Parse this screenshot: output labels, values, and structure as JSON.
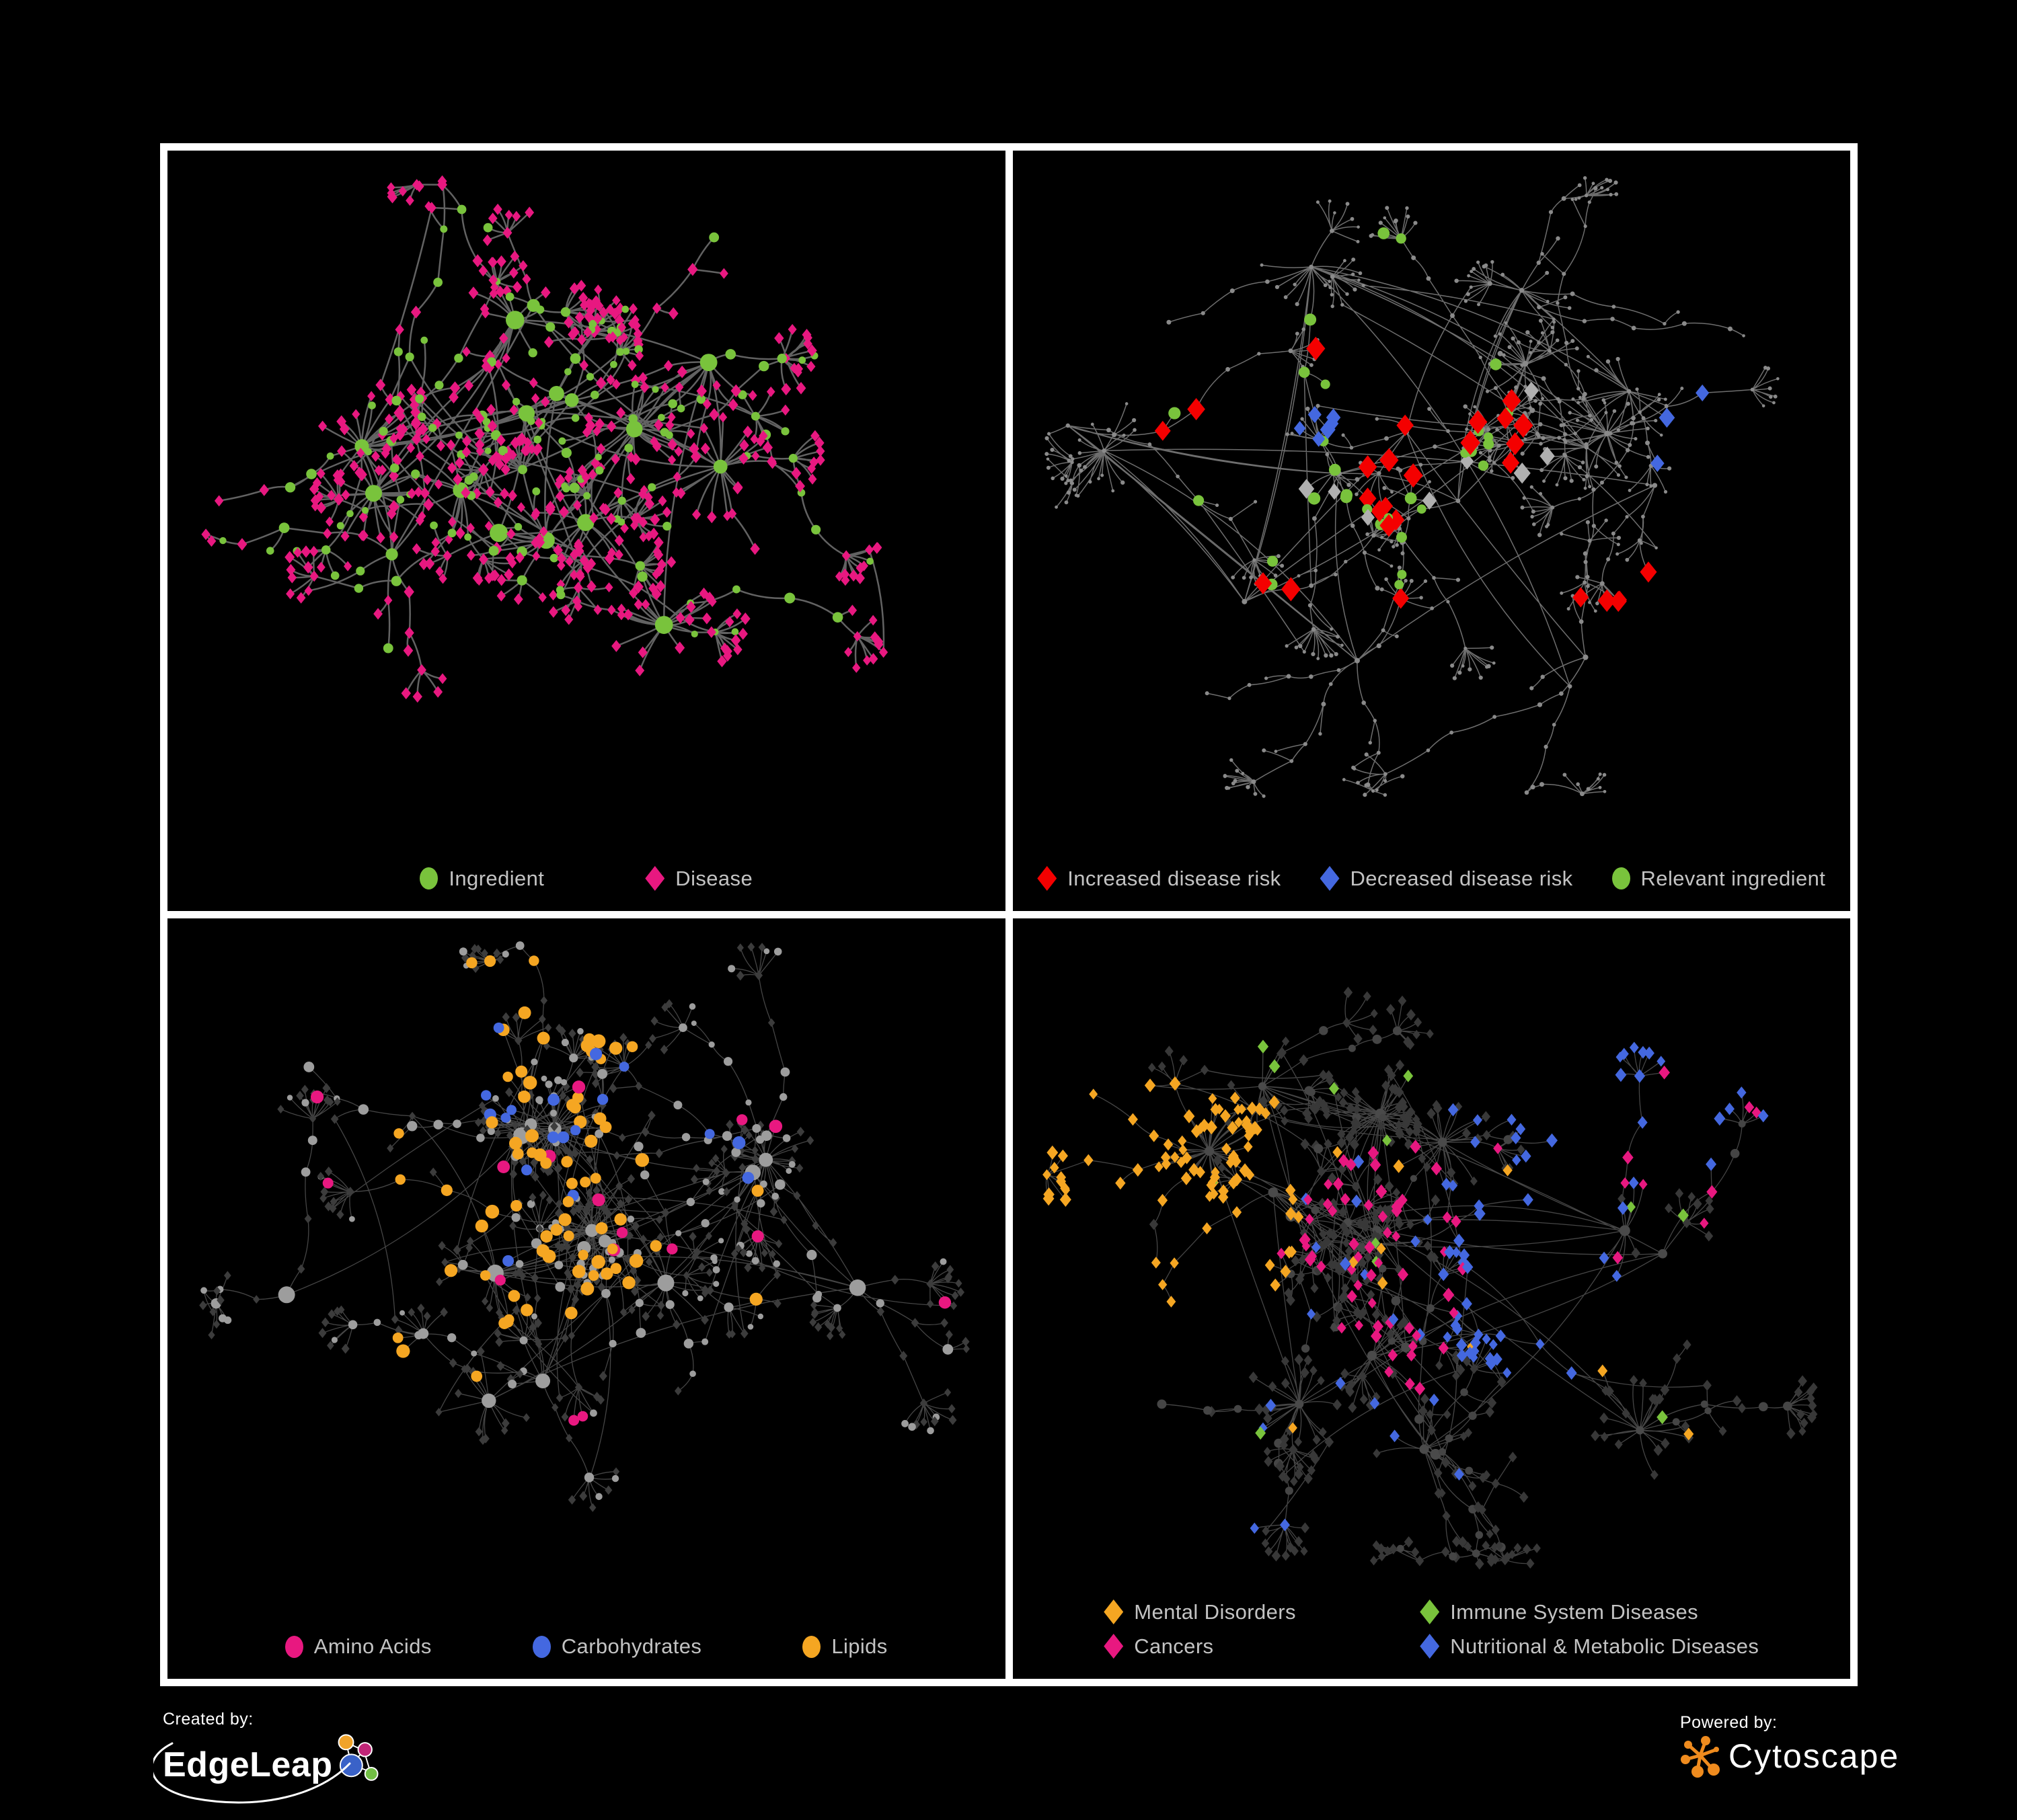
{
  "page": {
    "background": "#000000",
    "frame_color": "#ffffff"
  },
  "legend_text_color": "#c3c3c3",
  "palette": {
    "green": "#79c33c",
    "pink": "#e81880",
    "red": "#f40000",
    "blue": "#4468e0",
    "gold": "#f5a622",
    "gray_node": "#8a8a8a",
    "gray_diamond": "#b0b0b0",
    "dark_diamond": "#3c3c3c",
    "dark_circle": "#4a4a4a",
    "light_gray_circle": "#9d9d9d"
  },
  "panels": [
    {
      "id": "ingredients-diseases",
      "legend_layout": "row",
      "legend_gap": 150,
      "legend_rows": [
        [
          {
            "label": "Ingredient",
            "shape": "circle",
            "color": "#79c33c"
          },
          {
            "label": "Disease",
            "shape": "diamond",
            "color": "#e81880"
          }
        ]
      ],
      "net": {
        "seed": 11,
        "nodes": 660,
        "hubs": 16,
        "spread": 1.0,
        "fan_prob": 0.55,
        "burst_prob": 0.4,
        "cross": 0.06,
        "step_min": 32,
        "step_max": 84,
        "edge": {
          "color": "#6f6f6f",
          "width": 2.5,
          "opacity": 0.88
        },
        "base": {
          "hub": {
            "shape": "circle",
            "color": "#79c33c",
            "smin": 9,
            "smax": 14
          },
          "chain": [
            {
              "p": 0.42,
              "shape": "circle",
              "color": "#79c33c",
              "smin": 5,
              "smax": 8
            },
            {
              "p": 1.0,
              "shape": "diamond",
              "color": "#e81880",
              "smin": 6,
              "smax": 8
            }
          ],
          "leaf": [
            {
              "p": 0.1,
              "shape": "circle",
              "color": "#79c33c",
              "smin": 5,
              "smax": 7
            },
            {
              "p": 1.0,
              "shape": "diamond",
              "color": "#e81880",
              "smin": 6,
              "smax": 7.5
            }
          ]
        },
        "highlights": []
      }
    },
    {
      "id": "disease-risk",
      "legend_layout": "row",
      "legend_gap": 58,
      "legend_rows": [
        [
          {
            "label": "Increased disease risk",
            "shape": "diamond",
            "color": "#f40000"
          },
          {
            "label": "Decreased disease risk",
            "shape": "diamond",
            "color": "#4468e0"
          },
          {
            "label": "Relevant ingredient",
            "shape": "circle",
            "color": "#79c33c"
          }
        ]
      ],
      "net": {
        "seed": 23,
        "nodes": 630,
        "hubs": 18,
        "spread": 1.05,
        "fan_prob": 0.82,
        "burst_prob": 0.3,
        "cross": 0.035,
        "step_min": 30,
        "step_max": 80,
        "edge": {
          "color": "#8a8a8a",
          "width": 1.5,
          "opacity": 0.8
        },
        "base": {
          "hub": {
            "shape": "circle",
            "color": "#8a8a8a",
            "smin": 3.2,
            "smax": 4.2
          },
          "chain": [
            {
              "p": 1.0,
              "shape": "circle",
              "color": "#8a8a8a",
              "smin": 2.6,
              "smax": 3.6
            }
          ],
          "leaf": [
            {
              "p": 1.0,
              "shape": "circle",
              "color": "#8a8a8a",
              "smin": 2.3,
              "smax": 3.2
            }
          ]
        },
        "highlights": [
          {
            "shape": "diamond",
            "color": "#f40000",
            "size": 13,
            "count": 22,
            "fx": 0.38,
            "fy": 0.4,
            "frad": 0.3
          },
          {
            "shape": "diamond",
            "color": "#f40000",
            "size": 12,
            "count": 5,
            "fx": 0.8,
            "fy": 0.76,
            "frad": 0.12
          },
          {
            "shape": "diamond",
            "color": "#4468e0",
            "size": 10,
            "count": 6,
            "fx": 0.3,
            "fy": 0.4,
            "frad": 0.1
          },
          {
            "shape": "diamond",
            "color": "#4468e0",
            "size": 11,
            "count": 3,
            "fx": 0.87,
            "fy": 0.42,
            "frad": 0.06
          },
          {
            "shape": "diamond",
            "color": "#b0b0b0",
            "size": 11,
            "count": 8,
            "fx": 0.45,
            "fy": 0.45,
            "frad": 0.25
          },
          {
            "shape": "circle",
            "color": "#79c33c",
            "size": 8,
            "count": 30,
            "fx": 0.38,
            "fy": 0.4,
            "frad": 0.33
          }
        ]
      }
    },
    {
      "id": "ingredient-classes",
      "legend_layout": "row",
      "legend_gap": 150,
      "legend_rows": [
        [
          {
            "label": "Amino Acids",
            "shape": "circle",
            "color": "#e81880"
          },
          {
            "label": "Carbohydrates",
            "shape": "circle",
            "color": "#4468e0"
          },
          {
            "label": "Lipids",
            "shape": "circle",
            "color": "#f5a622"
          }
        ]
      ],
      "net": {
        "seed": 37,
        "nodes": 640,
        "hubs": 14,
        "spread": 1.0,
        "fan_prob": 0.6,
        "burst_prob": 0.45,
        "cross": 0.16,
        "step_min": 30,
        "step_max": 78,
        "edge": {
          "color": "#b5b5b5",
          "width": 1.3,
          "opacity": 0.38
        },
        "base": {
          "hub": {
            "shape": "circle",
            "color": "#9d9d9d",
            "smin": 8,
            "smax": 13
          },
          "chain": [
            {
              "p": 0.55,
              "shape": "circle",
              "color": "#9d9d9d",
              "smin": 4.5,
              "smax": 8
            },
            {
              "p": 1.0,
              "shape": "diamond",
              "color": "#3c3c3c",
              "smin": 5,
              "smax": 6
            }
          ],
          "leaf": [
            {
              "p": 0.22,
              "shape": "circle",
              "color": "#9d9d9d",
              "smin": 4,
              "smax": 6
            },
            {
              "p": 1.0,
              "shape": "diamond",
              "color": "#3c3c3c",
              "smin": 5,
              "smax": 6
            }
          ]
        },
        "highlights": [
          {
            "shape": "circle",
            "color": "#f5a622",
            "size": 9,
            "count": 55,
            "fx": 0.4,
            "fy": 0.32,
            "frad": 0.3
          },
          {
            "shape": "circle",
            "color": "#f5a622",
            "size": 9,
            "count": 20,
            "fx": 0.55,
            "fy": 0.62,
            "frad": 0.5
          },
          {
            "shape": "circle",
            "color": "#4468e0",
            "size": 8.5,
            "count": 13,
            "fx": 0.45,
            "fy": 0.26,
            "frad": 0.15
          },
          {
            "shape": "circle",
            "color": "#4468e0",
            "size": 8.5,
            "count": 5,
            "fx": 0.7,
            "fy": 0.7,
            "frad": 0.45
          },
          {
            "shape": "circle",
            "color": "#e81880",
            "size": 9,
            "count": 16,
            "fx": 0.5,
            "fy": 0.5,
            "frad": 0.8
          }
        ]
      }
    },
    {
      "id": "disease-classes",
      "legend_layout": "grid2",
      "legend_gap": 40,
      "legend_rows": [
        [
          {
            "label": "Mental Disorders",
            "shape": "diamond",
            "color": "#f5a622"
          },
          {
            "label": "Immune System Diseases",
            "shape": "diamond",
            "color": "#79c33c"
          }
        ],
        [
          {
            "label": "Cancers",
            "shape": "diamond",
            "color": "#e81880"
          },
          {
            "label": "Nutritional & Metabolic Diseases",
            "shape": "diamond",
            "color": "#4468e0"
          }
        ]
      ],
      "net": {
        "seed": 53,
        "nodes": 700,
        "hubs": 17,
        "spread": 1.05,
        "fan_prob": 0.68,
        "burst_prob": 0.4,
        "cross": 0.09,
        "step_min": 30,
        "step_max": 75,
        "edge": {
          "color": "#9a9a9a",
          "width": 1.3,
          "opacity": 0.45
        },
        "base": {
          "hub": {
            "shape": "circle",
            "color": "#4a4a4a",
            "smin": 6,
            "smax": 8
          },
          "chain": [
            {
              "p": 0.45,
              "shape": "circle",
              "color": "#454545",
              "smin": 5,
              "smax": 7
            },
            {
              "p": 1.0,
              "shape": "diamond",
              "color": "#383838",
              "smin": 6,
              "smax": 7
            }
          ],
          "leaf": [
            {
              "p": 1.0,
              "shape": "diamond",
              "color": "#383838",
              "smin": 5.5,
              "smax": 7
            }
          ]
        },
        "highlights": [
          {
            "shape": "diamond",
            "color": "#f5a622",
            "size": 7.5,
            "count": 90,
            "fx": 0.16,
            "fy": 0.42,
            "frad": 0.22
          },
          {
            "shape": "diamond",
            "color": "#f5a622",
            "size": 7.5,
            "count": 12,
            "fx": 0.5,
            "fy": 0.5,
            "frad": 0.85
          },
          {
            "shape": "diamond",
            "color": "#e81880",
            "size": 7.5,
            "count": 58,
            "fx": 0.46,
            "fy": 0.52,
            "frad": 0.2
          },
          {
            "shape": "diamond",
            "color": "#e81880",
            "size": 7.5,
            "count": 10,
            "fx": 0.82,
            "fy": 0.28,
            "frad": 0.3
          },
          {
            "shape": "diamond",
            "color": "#4468e0",
            "size": 7.5,
            "count": 35,
            "fx": 0.63,
            "fy": 0.55,
            "frad": 0.16
          },
          {
            "shape": "diamond",
            "color": "#4468e0",
            "size": 7.5,
            "count": 25,
            "fx": 0.75,
            "fy": 0.2,
            "frad": 0.2
          },
          {
            "shape": "diamond",
            "color": "#4468e0",
            "size": 7.5,
            "count": 20,
            "fx": 0.3,
            "fy": 0.8,
            "frad": 0.5
          },
          {
            "shape": "diamond",
            "color": "#79c33c",
            "size": 7.5,
            "count": 12,
            "fx": 0.5,
            "fy": 0.5,
            "frad": 0.75
          }
        ]
      }
    }
  ],
  "footer": {
    "created_by": {
      "label": "Created by:",
      "brand": "EdgeLeap"
    },
    "powered_by": {
      "label": "Powered by:",
      "brand": "Cytoscape"
    },
    "edgeleap_logo_colors": {
      "orange": "#f0a32a",
      "magenta": "#c02577",
      "blue": "#3a62c8",
      "green": "#72bf44"
    },
    "cytoscape_logo_color": "#ef8b1e"
  }
}
